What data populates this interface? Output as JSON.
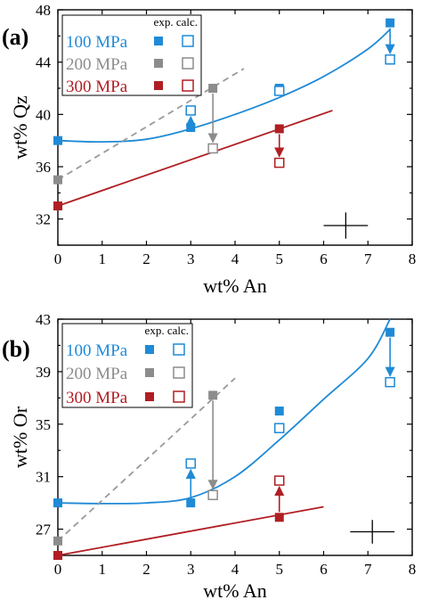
{
  "colors": {
    "p100": "#1f8ad6",
    "p200": "#8c8c8c",
    "p300": "#b01e23",
    "dash": "#9a9a9a",
    "axis": "#000000"
  },
  "legend_header": "exp. calc.",
  "chart_data": [
    {
      "type": "scatter",
      "panel_label": "(a)",
      "xlabel": "wt% An",
      "ylabel": "wt% Qz",
      "xlim": [
        0,
        8
      ],
      "ylim": [
        30,
        48
      ],
      "xticks": [
        0,
        1,
        2,
        3,
        4,
        5,
        6,
        7,
        8
      ],
      "yticks": [
        32,
        36,
        40,
        44,
        48
      ],
      "grid": false,
      "legend_position": "top-left",
      "series": [
        {
          "name": "100 MPa",
          "color_key": "p100",
          "exp": [
            [
              0,
              38.0
            ],
            [
              3,
              39.0
            ],
            [
              5,
              42.0
            ],
            [
              7.5,
              47.0
            ]
          ],
          "calc": [
            [
              3,
              40.3
            ],
            [
              5,
              41.8
            ],
            [
              7.5,
              44.2
            ]
          ],
          "arrows": [
            [
              3,
              39.0,
              40.3
            ],
            [
              7.5,
              47.0,
              44.2
            ]
          ],
          "trend": [
            [
              0,
              38.0
            ],
            [
              1,
              37.9
            ],
            [
              2,
              38.1
            ],
            [
              3,
              38.9
            ],
            [
              4,
              40.0
            ],
            [
              5,
              41.3
            ],
            [
              6,
              42.9
            ],
            [
              7,
              45.0
            ],
            [
              7.5,
              46.5
            ]
          ],
          "trend_style": "solid"
        },
        {
          "name": "200 MPa",
          "color_key": "p200",
          "exp": [
            [
              0,
              35.0
            ],
            [
              3.5,
              42.0
            ]
          ],
          "calc": [
            [
              3.5,
              37.4
            ]
          ],
          "arrows": [
            [
              3.5,
              42.0,
              37.4
            ]
          ],
          "trend": [
            [
              0,
              35.0
            ],
            [
              4.2,
              43.5
            ]
          ],
          "trend_style": "dashed"
        },
        {
          "name": "300 MPa",
          "color_key": "p300",
          "exp": [
            [
              0,
              33.0
            ],
            [
              5,
              38.9
            ]
          ],
          "calc": [
            [
              5,
              36.3
            ]
          ],
          "arrows": [
            [
              5,
              38.9,
              36.3
            ]
          ],
          "trend": [
            [
              0,
              33.0
            ],
            [
              6.2,
              40.3
            ]
          ],
          "trend_style": "solid"
        }
      ],
      "error_cross": {
        "x": 6.5,
        "y": 31.5,
        "dx": 0.5,
        "dy": 1.0
      }
    },
    {
      "type": "scatter",
      "panel_label": "(b)",
      "xlabel": "wt% An",
      "ylabel": "wt% Or",
      "xlim": [
        0,
        8
      ],
      "ylim": [
        25,
        43
      ],
      "xticks": [
        0,
        1,
        2,
        3,
        4,
        5,
        6,
        7,
        8
      ],
      "yticks": [
        27,
        31,
        35,
        39,
        43
      ],
      "grid": false,
      "legend_position": "top-left",
      "series": [
        {
          "name": "100 MPa",
          "color_key": "p100",
          "exp": [
            [
              0,
              29.0
            ],
            [
              3,
              29.0
            ],
            [
              5,
              36.0
            ],
            [
              7.5,
              42.0
            ]
          ],
          "calc": [
            [
              3,
              32.0
            ],
            [
              5,
              34.7
            ],
            [
              7.5,
              38.2
            ]
          ],
          "arrows": [
            [
              3,
              29.0,
              32.0
            ],
            [
              7.5,
              42.0,
              38.2
            ]
          ],
          "trend": [
            [
              0,
              29.0
            ],
            [
              1,
              28.95
            ],
            [
              2,
              29.0
            ],
            [
              3,
              29.4
            ],
            [
              4,
              31.0
            ],
            [
              5,
              33.8
            ],
            [
              6,
              36.9
            ],
            [
              7,
              40.0
            ],
            [
              7.5,
              43.0
            ]
          ],
          "trend_style": "solid"
        },
        {
          "name": "200 MPa",
          "color_key": "p200",
          "exp": [
            [
              0,
              26.1
            ],
            [
              3.5,
              37.2
            ]
          ],
          "calc": [
            [
              3.5,
              29.6
            ]
          ],
          "arrows": [
            [
              3.5,
              37.2,
              29.6
            ]
          ],
          "trend": [
            [
              0,
              26.1
            ],
            [
              4,
              38.5
            ]
          ],
          "trend_style": "dashed"
        },
        {
          "name": "300 MPa",
          "color_key": "p300",
          "exp": [
            [
              0,
              25.0
            ],
            [
              5,
              27.9
            ]
          ],
          "calc": [
            [
              5,
              30.7
            ]
          ],
          "arrows": [
            [
              5,
              27.9,
              30.7
            ]
          ],
          "trend": [
            [
              0,
              25.0
            ],
            [
              6,
              28.7
            ]
          ],
          "trend_style": "solid"
        }
      ],
      "error_cross": {
        "x": 7.1,
        "y": 26.8,
        "dx": 0.5,
        "dy": 0.9
      }
    }
  ]
}
